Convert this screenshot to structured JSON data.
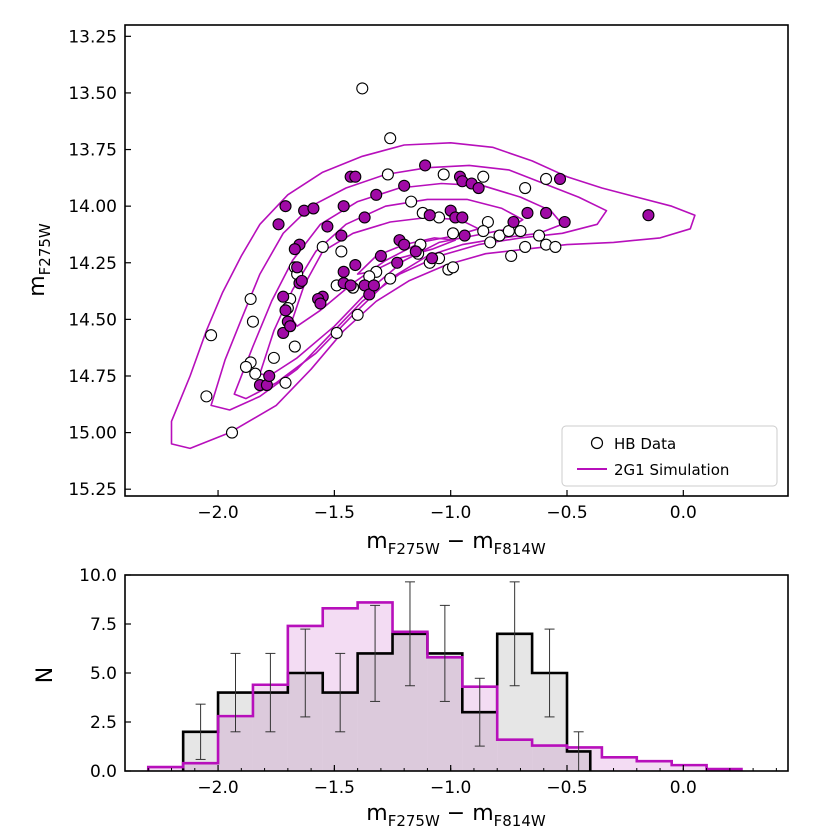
{
  "chart_data": [
    {
      "type": "scatter",
      "xlabel": {
        "main": "m",
        "sub1": "F275W",
        "sep": " − m",
        "sub2": "F814W"
      },
      "ylabel": {
        "main": "m",
        "sub": "F275W"
      },
      "xlim": [
        -2.4,
        0.45
      ],
      "ylim": [
        15.28,
        13.2
      ],
      "xticks": [
        -2.0,
        -1.5,
        -1.0,
        -0.5,
        0.0
      ],
      "xtick_labels": [
        "−2.0",
        "−1.5",
        "−1.0",
        "−0.5",
        "0.0"
      ],
      "yticks": [
        13.25,
        13.5,
        13.75,
        14.0,
        14.25,
        14.5,
        14.75,
        15.0,
        15.25
      ],
      "ytick_labels": [
        "13.25",
        "13.50",
        "13.75",
        "14.00",
        "14.25",
        "14.50",
        "14.75",
        "15.00",
        "15.25"
      ],
      "legend": {
        "position": "bottom-right",
        "entries": [
          "HB Data",
          "2G1 Simulation"
        ]
      },
      "colors": {
        "simulation": "#b70fbb",
        "filled_points": "#a00aa6",
        "data": "#000000"
      },
      "hb_data_open": [
        [
          -1.38,
          13.48
        ],
        [
          -1.26,
          13.7
        ],
        [
          -1.27,
          13.86
        ],
        [
          -1.03,
          13.86
        ],
        [
          -0.86,
          13.87
        ],
        [
          -0.68,
          13.92
        ],
        [
          -0.59,
          13.88
        ],
        [
          -1.17,
          13.98
        ],
        [
          -1.12,
          14.03
        ],
        [
          -1.05,
          14.05
        ],
        [
          -1.13,
          14.17
        ],
        [
          -1.14,
          14.21
        ],
        [
          -1.09,
          14.25
        ],
        [
          -1.05,
          14.23
        ],
        [
          -0.99,
          14.12
        ],
        [
          -1.01,
          14.28
        ],
        [
          -0.99,
          14.27
        ],
        [
          -0.84,
          14.07
        ],
        [
          -0.86,
          14.11
        ],
        [
          -0.83,
          14.16
        ],
        [
          -0.79,
          14.13
        ],
        [
          -0.75,
          14.11
        ],
        [
          -0.74,
          14.22
        ],
        [
          -0.7,
          14.11
        ],
        [
          -0.68,
          14.18
        ],
        [
          -0.62,
          14.13
        ],
        [
          -0.59,
          14.17
        ],
        [
          -0.55,
          14.18
        ],
        [
          -1.47,
          14.2
        ],
        [
          -1.55,
          14.18
        ],
        [
          -1.32,
          14.29
        ],
        [
          -1.35,
          14.31
        ],
        [
          -1.26,
          14.32
        ],
        [
          -1.49,
          14.35
        ],
        [
          -1.42,
          14.36
        ],
        [
          -1.4,
          14.48
        ],
        [
          -1.49,
          14.56
        ],
        [
          -1.67,
          14.27
        ],
        [
          -1.66,
          14.3
        ],
        [
          -1.69,
          14.41
        ],
        [
          -1.7,
          14.45
        ],
        [
          -1.67,
          14.62
        ],
        [
          -1.86,
          14.41
        ],
        [
          -1.85,
          14.51
        ],
        [
          -2.03,
          14.57
        ],
        [
          -1.76,
          14.67
        ],
        [
          -1.86,
          14.69
        ],
        [
          -1.88,
          14.71
        ],
        [
          -1.84,
          14.74
        ],
        [
          -1.71,
          14.78
        ],
        [
          -2.05,
          14.84
        ],
        [
          -1.94,
          15.0
        ]
      ],
      "hb_data_filled": [
        [
          -1.43,
          13.87
        ],
        [
          -1.41,
          13.87
        ],
        [
          -1.32,
          13.95
        ],
        [
          -1.2,
          13.91
        ],
        [
          -1.11,
          13.82
        ],
        [
          -0.96,
          13.87
        ],
        [
          -0.95,
          13.89
        ],
        [
          -0.91,
          13.9
        ],
        [
          -0.88,
          13.92
        ],
        [
          -0.53,
          13.88
        ],
        [
          -1.71,
          14.0
        ],
        [
          -1.63,
          14.02
        ],
        [
          -1.59,
          14.01
        ],
        [
          -1.74,
          14.08
        ],
        [
          -1.53,
          14.09
        ],
        [
          -1.46,
          14.0
        ],
        [
          -1.37,
          14.05
        ],
        [
          -1.09,
          14.04
        ],
        [
          -1.0,
          14.02
        ],
        [
          -0.98,
          14.05
        ],
        [
          -0.95,
          14.05
        ],
        [
          -0.94,
          14.13
        ],
        [
          -0.67,
          14.03
        ],
        [
          -0.59,
          14.03
        ],
        [
          -0.51,
          14.07
        ],
        [
          -0.15,
          14.04
        ],
        [
          -0.73,
          14.07
        ],
        [
          -1.65,
          14.17
        ],
        [
          -1.67,
          14.19
        ],
        [
          -1.47,
          14.13
        ],
        [
          -1.41,
          14.26
        ],
        [
          -1.46,
          14.29
        ],
        [
          -1.22,
          14.15
        ],
        [
          -1.3,
          14.22
        ],
        [
          -1.23,
          14.25
        ],
        [
          -1.2,
          14.17
        ],
        [
          -1.15,
          14.2
        ],
        [
          -1.08,
          14.23
        ],
        [
          -1.66,
          14.27
        ],
        [
          -1.65,
          14.34
        ],
        [
          -1.64,
          14.33
        ],
        [
          -1.46,
          14.34
        ],
        [
          -1.43,
          14.35
        ],
        [
          -1.37,
          14.35
        ],
        [
          -1.55,
          14.4
        ],
        [
          -1.57,
          14.41
        ],
        [
          -1.56,
          14.43
        ],
        [
          -1.35,
          14.39
        ],
        [
          -1.33,
          14.35
        ],
        [
          -1.72,
          14.4
        ],
        [
          -1.71,
          14.46
        ],
        [
          -1.7,
          14.51
        ],
        [
          -1.72,
          14.56
        ],
        [
          -1.69,
          14.53
        ],
        [
          -1.82,
          14.79
        ],
        [
          -1.79,
          14.79
        ],
        [
          -1.78,
          14.75
        ]
      ],
      "contours": [
        [
          [
            -2.2,
            15.05
          ],
          [
            -2.2,
            14.95
          ],
          [
            -2.12,
            14.75
          ],
          [
            -2.05,
            14.55
          ],
          [
            -1.98,
            14.38
          ],
          [
            -1.9,
            14.22
          ],
          [
            -1.82,
            14.08
          ],
          [
            -1.7,
            13.95
          ],
          [
            -1.55,
            13.85
          ],
          [
            -1.38,
            13.78
          ],
          [
            -1.2,
            13.73
          ],
          [
            -1.0,
            13.72
          ],
          [
            -0.82,
            13.74
          ],
          [
            -0.65,
            13.8
          ],
          [
            -0.5,
            13.87
          ],
          [
            -0.35,
            13.92
          ],
          [
            -0.2,
            13.96
          ],
          [
            -0.05,
            14.0
          ],
          [
            0.05,
            14.04
          ],
          [
            0.03,
            14.1
          ],
          [
            -0.1,
            14.14
          ],
          [
            -0.3,
            14.16
          ],
          [
            -0.5,
            14.17
          ],
          [
            -0.68,
            14.19
          ],
          [
            -0.85,
            14.21
          ],
          [
            -1.02,
            14.26
          ],
          [
            -1.18,
            14.33
          ],
          [
            -1.32,
            14.42
          ],
          [
            -1.46,
            14.55
          ],
          [
            -1.6,
            14.72
          ],
          [
            -1.75,
            14.88
          ],
          [
            -1.95,
            15.0
          ],
          [
            -2.12,
            15.07
          ],
          [
            -2.2,
            15.05
          ]
        ],
        [
          [
            -2.03,
            14.88
          ],
          [
            -1.97,
            14.68
          ],
          [
            -1.9,
            14.5
          ],
          [
            -1.82,
            14.3
          ],
          [
            -1.72,
            14.12
          ],
          [
            -1.6,
            14.0
          ],
          [
            -1.45,
            13.92
          ],
          [
            -1.28,
            13.86
          ],
          [
            -1.1,
            13.83
          ],
          [
            -0.92,
            13.82
          ],
          [
            -0.75,
            13.84
          ],
          [
            -0.6,
            13.9
          ],
          [
            -0.45,
            13.96
          ],
          [
            -0.33,
            14.02
          ],
          [
            -0.37,
            14.08
          ],
          [
            -0.52,
            14.12
          ],
          [
            -0.7,
            14.14
          ],
          [
            -0.88,
            14.17
          ],
          [
            -1.05,
            14.22
          ],
          [
            -1.22,
            14.3
          ],
          [
            -1.38,
            14.42
          ],
          [
            -1.52,
            14.57
          ],
          [
            -1.66,
            14.72
          ],
          [
            -1.82,
            14.84
          ],
          [
            -1.95,
            14.9
          ],
          [
            -2.03,
            14.88
          ]
        ],
        [
          [
            -1.93,
            14.83
          ],
          [
            -1.85,
            14.62
          ],
          [
            -1.77,
            14.42
          ],
          [
            -1.68,
            14.24
          ],
          [
            -1.56,
            14.08
          ],
          [
            -1.4,
            13.98
          ],
          [
            -1.22,
            13.92
          ],
          [
            -1.04,
            13.9
          ],
          [
            -0.86,
            13.91
          ],
          [
            -0.7,
            13.96
          ],
          [
            -0.57,
            14.02
          ],
          [
            -0.52,
            14.08
          ],
          [
            -0.62,
            14.12
          ],
          [
            -0.78,
            14.14
          ],
          [
            -0.95,
            14.17
          ],
          [
            -1.1,
            14.22
          ],
          [
            -1.26,
            14.32
          ],
          [
            -1.42,
            14.48
          ],
          [
            -1.58,
            14.65
          ],
          [
            -1.75,
            14.78
          ],
          [
            -1.88,
            14.85
          ],
          [
            -1.93,
            14.83
          ]
        ],
        [
          [
            -1.82,
            14.74
          ],
          [
            -1.76,
            14.55
          ],
          [
            -1.68,
            14.37
          ],
          [
            -1.58,
            14.2
          ],
          [
            -1.45,
            14.08
          ],
          [
            -1.28,
            14.0
          ],
          [
            -1.1,
            13.97
          ],
          [
            -0.93,
            13.97
          ],
          [
            -0.78,
            14.01
          ],
          [
            -0.69,
            14.06
          ],
          [
            -0.75,
            14.1
          ],
          [
            -0.9,
            14.13
          ],
          [
            -1.05,
            14.16
          ],
          [
            -1.2,
            14.24
          ],
          [
            -1.35,
            14.37
          ],
          [
            -1.5,
            14.53
          ],
          [
            -1.66,
            14.67
          ],
          [
            -1.78,
            14.75
          ],
          [
            -1.82,
            14.74
          ]
        ],
        [
          [
            -1.68,
            14.5
          ],
          [
            -1.63,
            14.35
          ],
          [
            -1.55,
            14.2
          ],
          [
            -1.42,
            14.12
          ],
          [
            -1.26,
            14.07
          ],
          [
            -1.1,
            14.05
          ],
          [
            -0.96,
            14.06
          ],
          [
            -0.88,
            14.1
          ],
          [
            -0.98,
            14.13
          ],
          [
            -1.13,
            14.16
          ],
          [
            -1.28,
            14.24
          ],
          [
            -1.42,
            14.34
          ],
          [
            -1.56,
            14.46
          ],
          [
            -1.66,
            14.53
          ],
          [
            -1.68,
            14.5
          ]
        ],
        [
          [
            -1.4,
            14.3
          ],
          [
            -1.32,
            14.22
          ],
          [
            -1.2,
            14.17
          ],
          [
            -1.07,
            14.14
          ],
          [
            -0.98,
            14.15
          ],
          [
            -1.08,
            14.19
          ],
          [
            -1.22,
            14.23
          ],
          [
            -1.34,
            14.29
          ],
          [
            -1.4,
            14.3
          ]
        ]
      ]
    },
    {
      "type": "histogram",
      "ylabel": "N",
      "xlabel": {
        "main": "m",
        "sub1": "F275W",
        "sep": " − m",
        "sub2": "F814W"
      },
      "xlim": [
        -2.4,
        0.45
      ],
      "ylim": [
        0,
        10
      ],
      "xticks": [
        -2.0,
        -1.5,
        -1.0,
        -0.5,
        0.0
      ],
      "xtick_labels": [
        "−2.0",
        "−1.5",
        "−1.0",
        "−0.5",
        "0.0"
      ],
      "yticks": [
        0,
        2.5,
        5,
        7.5,
        10
      ],
      "ytick_labels": [
        "0.0",
        "2.5",
        "5.0",
        "7.5",
        "10.0"
      ],
      "colors": {
        "data_fill": "#e6e6e6",
        "sim_fill": "#f3dcf3",
        "overlap_fill": "#dccadc",
        "sim_line": "#b70fbb"
      },
      "series": [
        {
          "name": "HB Data",
          "bin_edges": [
            -2.15,
            -2.0,
            -1.85,
            -1.7,
            -1.55,
            -1.4,
            -1.25,
            -1.1,
            -0.95,
            -0.8,
            -0.65,
            -0.5,
            -0.4
          ],
          "values": [
            2,
            4,
            4,
            5,
            4,
            6,
            7,
            6,
            3,
            7,
            5,
            1
          ],
          "errors": [
            1.41,
            2.0,
            2.0,
            2.24,
            2.0,
            2.45,
            2.65,
            2.45,
            1.73,
            2.65,
            2.24,
            1.0
          ]
        },
        {
          "name": "2G1 Simulation",
          "bin_edges": [
            -2.3,
            -2.15,
            -2.0,
            -1.85,
            -1.7,
            -1.55,
            -1.4,
            -1.25,
            -1.1,
            -0.95,
            -0.8,
            -0.65,
            -0.5,
            -0.35,
            -0.2,
            -0.05,
            0.1,
            0.25
          ],
          "values": [
            0.2,
            0.4,
            2.8,
            4.4,
            7.4,
            8.3,
            8.6,
            7.1,
            5.8,
            4.3,
            1.6,
            1.3,
            1.2,
            0.7,
            0.5,
            0.3,
            0.1
          ]
        }
      ]
    }
  ]
}
